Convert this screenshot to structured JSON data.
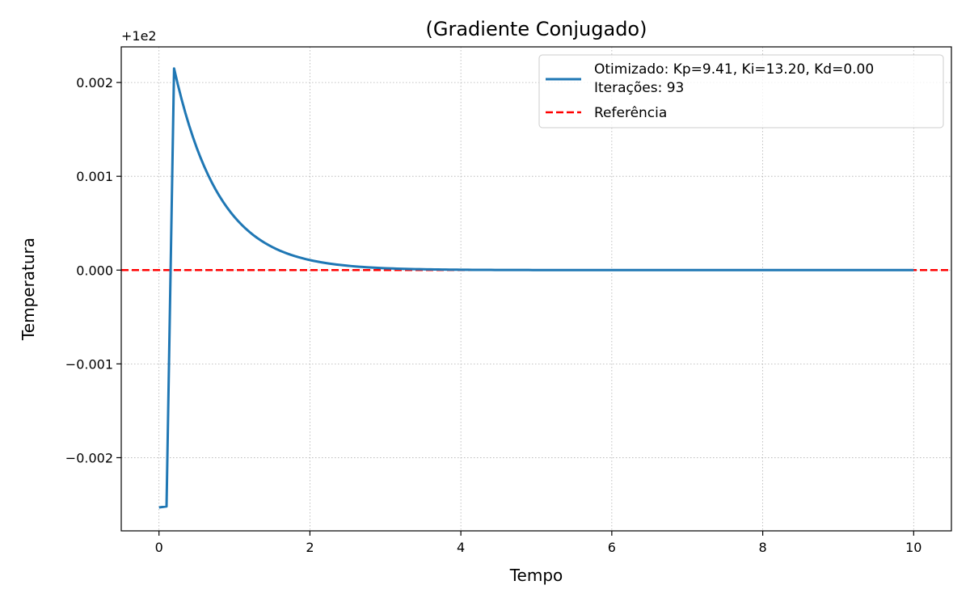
{
  "chart_data": {
    "type": "line",
    "title": "(Gradiente Conjugado)",
    "xlabel": "Tempo",
    "ylabel": "Temperatura",
    "offset_label": "+1e2",
    "xlim": [
      -0.5,
      10.5
    ],
    "ylim": [
      -0.00278,
      0.00238
    ],
    "xticks": [
      0,
      2,
      4,
      6,
      8,
      10
    ],
    "yticks": [
      -0.002,
      -0.001,
      0.0,
      0.001,
      0.002
    ],
    "ytick_labels": [
      "−0.002",
      "−0.001",
      "0.000",
      "0.001",
      "0.002"
    ],
    "xtick_labels": [
      "0",
      "2",
      "4",
      "6",
      "8",
      "10"
    ],
    "grid": true,
    "legend_position": "top-right",
    "series": [
      {
        "name": "Otimizado: Kp=9.41, Ki=13.20, Kd=0.00",
        "name_line2": "Iterações: 93",
        "color": "#1f77b4",
        "style": "solid",
        "model": {
          "points": [
            [
              0.0,
              -0.00253
            ],
            [
              0.1,
              -0.00252
            ],
            [
              0.2,
              0.00215
            ]
          ],
          "decay_start": 0.2,
          "decay_end": 10.0,
          "decay_amplitude": 0.00215,
          "decay_tau": 0.6,
          "sample_step": 0.05
        }
      },
      {
        "name": "Referência",
        "color": "#ff0000",
        "style": "dashed",
        "y": 0.0
      }
    ]
  }
}
